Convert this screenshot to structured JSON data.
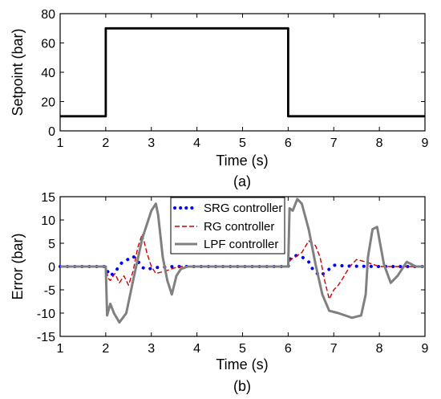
{
  "chart_data": [
    {
      "type": "line",
      "xlabel": "Time (s)",
      "ylabel": "Setpoint (bar)",
      "caption": "(a)",
      "xlim": [
        1,
        9
      ],
      "ylim": [
        0,
        80
      ],
      "xticks": [
        "1",
        "2",
        "3",
        "4",
        "5",
        "6",
        "7",
        "8",
        "9"
      ],
      "yticks": [
        "0",
        "20",
        "40",
        "60",
        "80"
      ],
      "grid": false,
      "series": [
        {
          "x": [
            1,
            2,
            2,
            6,
            6,
            9
          ],
          "y": [
            10,
            10,
            70,
            70,
            10,
            10
          ],
          "color": "#000000"
        }
      ]
    },
    {
      "type": "line",
      "xlabel": "Time (s)",
      "ylabel": "Error (bar)",
      "caption": "(b)",
      "xlim": [
        1,
        9
      ],
      "ylim": [
        -15,
        15
      ],
      "xticks": [
        "1",
        "2",
        "3",
        "4",
        "5",
        "6",
        "7",
        "8",
        "9"
      ],
      "yticks": [
        "-15",
        "-10",
        "-5",
        "0",
        "5",
        "10",
        "15"
      ],
      "grid": false,
      "legend": "top-center",
      "series": [
        {
          "name": "SRG controller",
          "color": "#0000ff",
          "style": "dotted",
          "x": [
            1,
            2.0,
            2.05,
            2.1,
            2.2,
            2.35,
            2.5,
            2.6,
            2.7,
            2.8,
            2.9,
            3.1,
            3.5,
            4,
            5,
            6.0,
            6.05,
            6.15,
            6.3,
            6.45,
            6.55,
            6.7,
            6.85,
            7.0,
            7.3,
            8,
            9
          ],
          "y": [
            0,
            0,
            -1.2,
            -2.0,
            -1.2,
            0.8,
            1.6,
            2.2,
            1.2,
            -0.2,
            -0.6,
            -0.2,
            0,
            0,
            0,
            0,
            1.8,
            2.4,
            2.1,
            1.0,
            -0.8,
            -2.0,
            -1.0,
            0.3,
            0.1,
            0,
            0
          ]
        },
        {
          "name": "RG controller",
          "color": "#cc0000",
          "style": "dashed",
          "x": [
            1,
            2.0,
            2.05,
            2.1,
            2.2,
            2.3,
            2.4,
            2.5,
            2.6,
            2.7,
            2.8,
            2.9,
            3.0,
            3.1,
            3.3,
            3.6,
            4,
            5,
            6.0,
            6.05,
            6.15,
            6.3,
            6.45,
            6.6,
            6.7,
            6.8,
            6.9,
            7.0,
            7.1,
            7.2,
            7.35,
            7.5,
            7.7,
            8.0,
            9
          ],
          "y": [
            0,
            0,
            -2.5,
            -3.0,
            -1.5,
            -3.5,
            -2.0,
            -4.0,
            -1.0,
            4.0,
            7.0,
            3.0,
            0.0,
            -1.5,
            -1.0,
            0.0,
            0.0,
            0.0,
            0.0,
            1.5,
            2.0,
            3.0,
            5.5,
            4.5,
            2.0,
            -3.0,
            -7.0,
            -5.0,
            -4.0,
            -2.5,
            0.0,
            1.5,
            1.0,
            0.0,
            0.0
          ]
        },
        {
          "name": "LPF controller",
          "color": "#808080",
          "style": "solid",
          "x": [
            1,
            2.0,
            2.03,
            2.1,
            2.18,
            2.3,
            2.45,
            2.6,
            2.8,
            3.0,
            3.1,
            3.15,
            3.25,
            3.35,
            3.45,
            3.55,
            3.65,
            3.8,
            4.0,
            5,
            6.0,
            6.03,
            6.1,
            6.2,
            6.3,
            6.45,
            6.6,
            6.75,
            6.9,
            7.1,
            7.4,
            7.6,
            7.7,
            7.75,
            7.85,
            7.95,
            8.1,
            8.25,
            8.4,
            8.6,
            8.8,
            9
          ],
          "y": [
            0,
            0,
            -10.5,
            -8.0,
            -10.0,
            -12.0,
            -10.0,
            -3.0,
            6.0,
            12.0,
            13.5,
            11.0,
            2.0,
            -3.0,
            -6.0,
            -2.0,
            -0.5,
            0.0,
            0.0,
            0.0,
            0.0,
            12.5,
            12.0,
            14.5,
            13.5,
            8.0,
            0.5,
            -6.0,
            -9.5,
            -10.0,
            -11.0,
            -10.5,
            -6.0,
            2.0,
            8.0,
            8.5,
            0.5,
            -3.5,
            -2.0,
            1.0,
            0.0,
            0.0
          ]
        }
      ]
    }
  ]
}
